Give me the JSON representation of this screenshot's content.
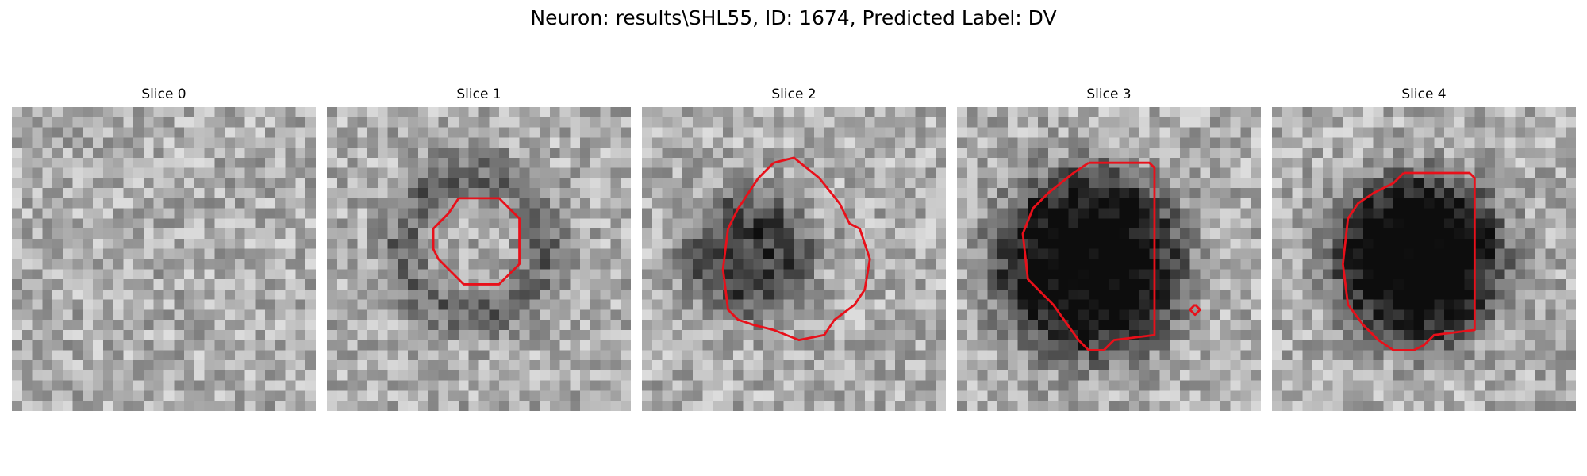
{
  "figure": {
    "title": "Neuron: results\\SHL55, ID: 1674, Predicted Label: DV"
  },
  "panels": [
    {
      "title": "Slice 0",
      "blob": null,
      "contours": []
    },
    {
      "title": "Slice 1",
      "blob": {
        "cx": 14.5,
        "cy": 13.5,
        "r": 7.0,
        "strength": 0.28,
        "ring": true
      },
      "contours": [
        [
          [
            13,
            9
          ],
          [
            17,
            9
          ],
          [
            19,
            11
          ],
          [
            19,
            15.5
          ],
          [
            17,
            17.5
          ],
          [
            13.5,
            17.5
          ],
          [
            11.5,
            15.5
          ],
          [
            11,
            15
          ],
          [
            10.5,
            14
          ],
          [
            10.5,
            12
          ],
          [
            12,
            10.5
          ],
          [
            13,
            9
          ]
        ]
      ]
    },
    {
      "title": "Slice 2",
      "blob": {
        "cx": 10.5,
        "cy": 14.5,
        "r": 6.5,
        "strength": 0.45,
        "ring": false
      },
      "contours": [
        [
          [
            13,
            5.5
          ],
          [
            15,
            5
          ],
          [
            17.5,
            7
          ],
          [
            19.5,
            9.5
          ],
          [
            20.5,
            11.5
          ],
          [
            21.5,
            12
          ],
          [
            22.5,
            15
          ],
          [
            22,
            18
          ],
          [
            21,
            19.5
          ],
          [
            19,
            21
          ],
          [
            18,
            22.5
          ],
          [
            15.5,
            23
          ],
          [
            13,
            22
          ],
          [
            11,
            21.5
          ],
          [
            9.5,
            21
          ],
          [
            8.5,
            20
          ],
          [
            8,
            16
          ],
          [
            8.5,
            12
          ],
          [
            9.5,
            10
          ],
          [
            11.5,
            7
          ],
          [
            13,
            5.5
          ]
        ]
      ]
    },
    {
      "title": "Slice 3",
      "blob": {
        "cx": 13.0,
        "cy": 15.5,
        "r": 9.5,
        "strength": 0.75,
        "ring": false
      },
      "contours": [
        [
          [
            13,
            5.5
          ],
          [
            19,
            5.5
          ],
          [
            19.5,
            6
          ],
          [
            19.5,
            22.5
          ],
          [
            15.5,
            23
          ],
          [
            14.5,
            24
          ],
          [
            13,
            24
          ],
          [
            12,
            23
          ],
          [
            9.5,
            19.5
          ],
          [
            7,
            17
          ],
          [
            6.5,
            12.5
          ],
          [
            7.5,
            10
          ],
          [
            9,
            8.5
          ],
          [
            11.5,
            6.5
          ],
          [
            13,
            5.5
          ]
        ],
        [
          [
            23.5,
            19.5
          ],
          [
            24,
            20
          ],
          [
            23.5,
            20.5
          ],
          [
            23,
            20
          ],
          [
            23.5,
            19.5
          ]
        ]
      ]
    },
    {
      "title": "Slice 4",
      "blob": {
        "cx": 14.5,
        "cy": 15.0,
        "r": 8.5,
        "strength": 0.8,
        "ring": false
      },
      "contours": [
        [
          [
            13,
            6.5
          ],
          [
            19.5,
            6.5
          ],
          [
            20,
            7
          ],
          [
            20,
            22
          ],
          [
            16,
            22.5
          ],
          [
            15,
            23.5
          ],
          [
            14,
            24
          ],
          [
            12,
            24
          ],
          [
            10.5,
            23
          ],
          [
            9,
            21.5
          ],
          [
            7.5,
            19.5
          ],
          [
            7,
            15.5
          ],
          [
            7.5,
            11
          ],
          [
            8.5,
            9.5
          ],
          [
            10,
            8.5
          ],
          [
            12,
            7.5
          ],
          [
            13,
            6.5
          ]
        ]
      ]
    }
  ]
}
